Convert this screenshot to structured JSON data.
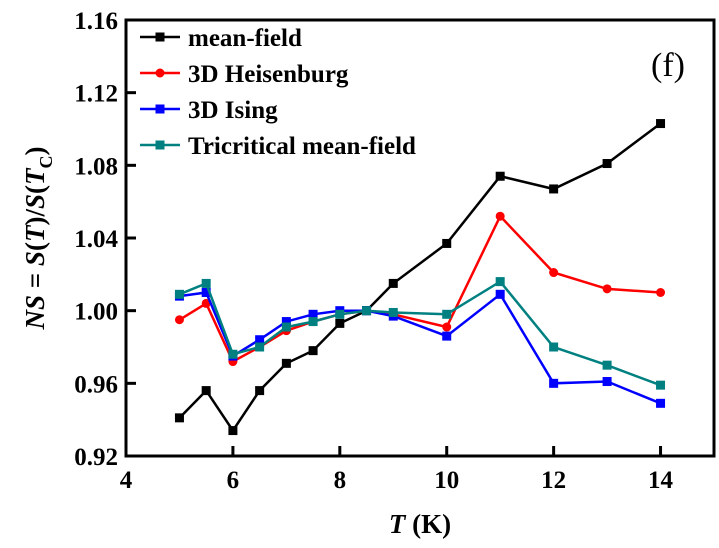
{
  "chart_data": {
    "type": "line",
    "panel_label": "(f)",
    "xlabel": {
      "var": "T",
      "unit": " (K)"
    },
    "ylabel": {
      "p1": "NS",
      "p2": " = ",
      "p3": "S",
      "p4": "(",
      "p5": "T",
      "p6": ")/",
      "p7": "S",
      "p8": "(",
      "p9": "T",
      "p10": "C",
      "p11": ")"
    },
    "xlim": [
      4,
      15
    ],
    "ylim": [
      0.92,
      1.16
    ],
    "xticks": [
      4,
      6,
      8,
      10,
      12,
      14
    ],
    "xtick_labels": [
      "4",
      "6",
      "8",
      "10",
      "12",
      "14"
    ],
    "yticks": [
      0.92,
      0.96,
      1.0,
      1.04,
      1.08,
      1.12,
      1.16
    ],
    "ytick_labels": [
      "0.92",
      "0.96",
      "1.00",
      "1.04",
      "1.08",
      "1.12",
      "1.16"
    ],
    "grid": false,
    "legend_position": "top-left",
    "x": [
      5,
      5.5,
      6,
      6.5,
      7,
      7.5,
      8,
      8.5,
      9,
      10,
      11,
      12,
      13,
      14
    ],
    "series": [
      {
        "name": "mean-field",
        "color": "#000000",
        "marker": "square",
        "values": [
          0.941,
          0.956,
          0.934,
          0.956,
          0.971,
          0.978,
          0.993,
          1.0,
          1.015,
          1.037,
          1.074,
          1.067,
          1.081,
          1.103
        ]
      },
      {
        "name": "3D Heisenburg",
        "color": "#ff0000",
        "marker": "circle",
        "values": [
          0.995,
          1.004,
          0.972,
          0.98,
          0.989,
          0.994,
          0.998,
          1.0,
          0.998,
          0.991,
          1.052,
          1.021,
          1.012,
          1.01
        ]
      },
      {
        "name": "3D Ising",
        "color": "#0000ff",
        "marker": "square",
        "values": [
          1.008,
          1.01,
          0.975,
          0.984,
          0.994,
          0.998,
          1.0,
          1.0,
          0.997,
          0.986,
          1.009,
          0.96,
          0.961,
          0.949
        ]
      },
      {
        "name": "Tricritical mean-field",
        "color": "#008080",
        "marker": "square",
        "values": [
          1.009,
          1.015,
          0.976,
          0.98,
          0.991,
          0.994,
          0.998,
          1.0,
          0.999,
          0.998,
          1.016,
          0.98,
          0.97,
          0.959
        ]
      }
    ]
  }
}
